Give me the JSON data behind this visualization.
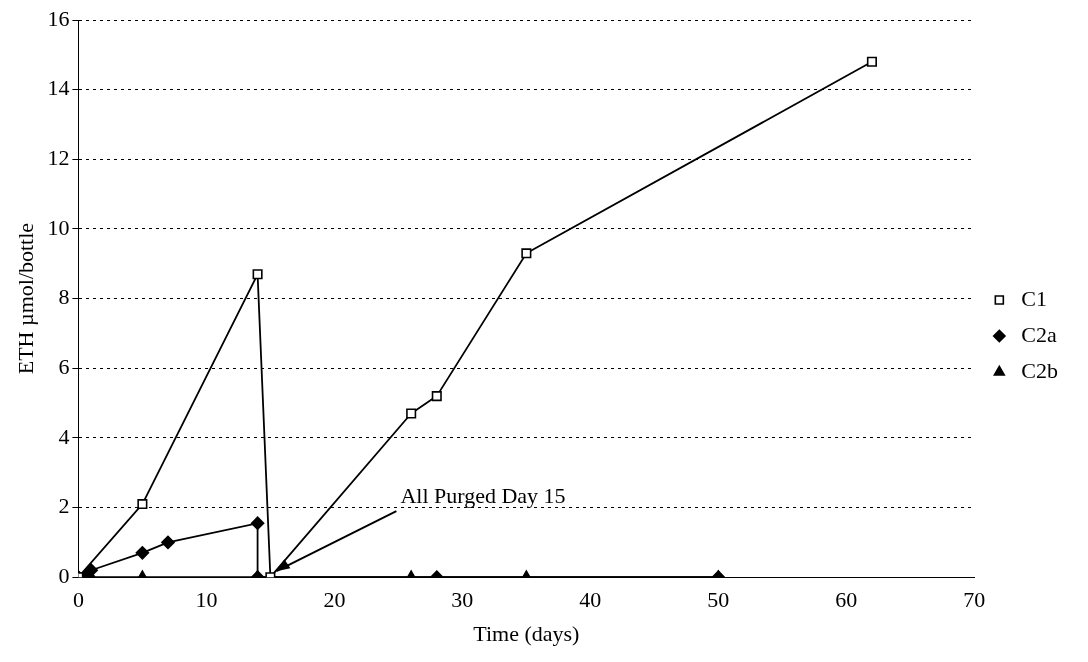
{
  "chart_data": {
    "type": "line",
    "xlabel": "Time (days)",
    "ylabel": "ETH µmol/bottle",
    "xlim": [
      0,
      70
    ],
    "xticks": [
      0,
      10,
      20,
      30,
      40,
      50,
      60,
      70
    ],
    "ylim": [
      0,
      16
    ],
    "yticks": [
      0,
      2,
      4,
      6,
      8,
      10,
      12,
      14,
      16
    ],
    "grid": "y",
    "legend": "right",
    "line_style": "solid",
    "series": [
      {
        "name": "C1",
        "color": "#000000",
        "marker": "square",
        "x": [
          0,
          5,
          14,
          15,
          26,
          28,
          35,
          62
        ],
        "values": [
          0,
          2.1,
          8.7,
          0,
          4.7,
          5.2,
          9.3,
          14.8
        ]
      },
      {
        "name": "C2a",
        "color": "#000000",
        "marker": "diamond",
        "x": [
          0,
          0.5,
          1,
          5,
          7,
          14,
          14,
          28,
          50
        ],
        "values": [
          0,
          0,
          0.2,
          0.7,
          1.0,
          1.55,
          0,
          0,
          0
        ]
      },
      {
        "name": "C2b",
        "color": "#000000",
        "marker": "triangle",
        "x": [
          0,
          1,
          5,
          14,
          26,
          35,
          50
        ],
        "values": [
          0,
          0,
          0,
          0,
          0,
          0,
          0
        ]
      }
    ],
    "annotations": [
      {
        "text": "All Purged Day 15",
        "x": 15,
        "y": 0
      }
    ]
  }
}
